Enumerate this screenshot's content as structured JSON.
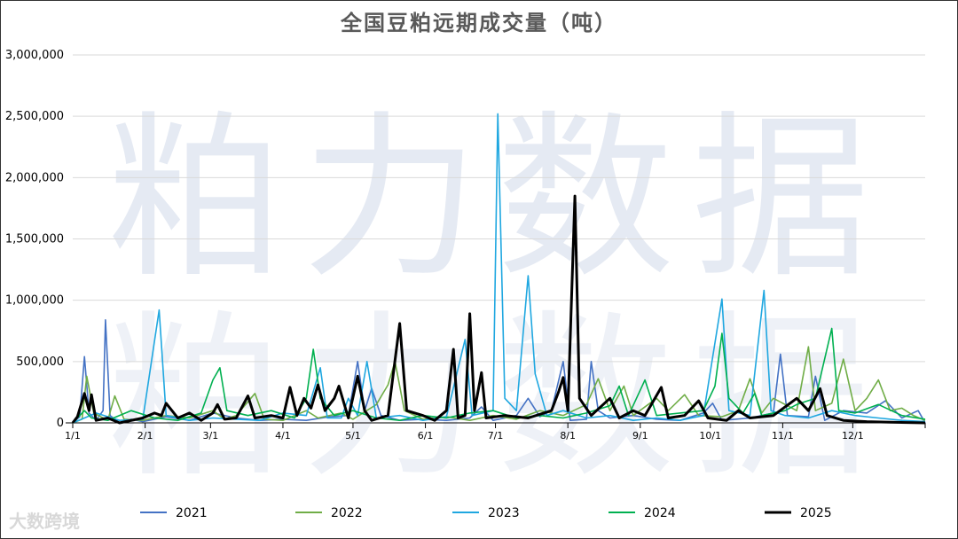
{
  "chart_data": {
    "type": "line",
    "title": "全国豆粕远期成交量（吨）",
    "watermark": "粕力数据",
    "logo_text": "大数跨境",
    "ylim": [
      0,
      3000000
    ],
    "yticks": [
      "0",
      "500,000",
      "1,000,000",
      "1,500,000",
      "2,000,000",
      "2,500,000",
      "3,000,000"
    ],
    "ytick_values": [
      0,
      500000,
      1000000,
      1500000,
      2000000,
      2500000,
      3000000
    ],
    "xticks": [
      "1/1",
      "2/1",
      "3/1",
      "4/1",
      "5/1",
      "6/1",
      "7/1",
      "8/1",
      "9/1",
      "10/1",
      "11/1",
      "12/1"
    ],
    "xtick_days": [
      0,
      31,
      59,
      90,
      120,
      151,
      181,
      212,
      243,
      273,
      304,
      334
    ],
    "xlim": [
      0,
      365
    ],
    "grid": true,
    "legend_position": "bottom",
    "series": [
      {
        "name": "2021",
        "color": "#4472c4",
        "points": [
          [
            0,
            0
          ],
          [
            3,
            50000
          ],
          [
            5,
            540000
          ],
          [
            7,
            80000
          ],
          [
            10,
            20000
          ],
          [
            13,
            100000
          ],
          [
            14,
            840000
          ],
          [
            16,
            60000
          ],
          [
            20,
            0
          ],
          [
            25,
            30000
          ],
          [
            30,
            10000
          ],
          [
            40,
            50000
          ],
          [
            50,
            20000
          ],
          [
            60,
            80000
          ],
          [
            70,
            40000
          ],
          [
            80,
            20000
          ],
          [
            90,
            30000
          ],
          [
            100,
            20000
          ],
          [
            110,
            50000
          ],
          [
            118,
            60000
          ],
          [
            122,
            500000
          ],
          [
            125,
            100000
          ],
          [
            128,
            280000
          ],
          [
            132,
            60000
          ],
          [
            140,
            20000
          ],
          [
            150,
            30000
          ],
          [
            160,
            20000
          ],
          [
            170,
            40000
          ],
          [
            175,
            130000
          ],
          [
            180,
            20000
          ],
          [
            190,
            60000
          ],
          [
            195,
            200000
          ],
          [
            200,
            50000
          ],
          [
            205,
            100000
          ],
          [
            210,
            500000
          ],
          [
            213,
            20000
          ],
          [
            220,
            30000
          ],
          [
            222,
            500000
          ],
          [
            225,
            100000
          ],
          [
            230,
            40000
          ],
          [
            240,
            60000
          ],
          [
            250,
            30000
          ],
          [
            260,
            20000
          ],
          [
            270,
            80000
          ],
          [
            274,
            160000
          ],
          [
            278,
            20000
          ],
          [
            290,
            40000
          ],
          [
            300,
            80000
          ],
          [
            303,
            560000
          ],
          [
            306,
            60000
          ],
          [
            315,
            50000
          ],
          [
            318,
            380000
          ],
          [
            322,
            20000
          ],
          [
            330,
            100000
          ],
          [
            340,
            80000
          ],
          [
            348,
            180000
          ],
          [
            355,
            40000
          ],
          [
            362,
            100000
          ],
          [
            365,
            0
          ]
        ]
      },
      {
        "name": "2022",
        "color": "#70ad47",
        "points": [
          [
            0,
            0
          ],
          [
            4,
            30000
          ],
          [
            6,
            380000
          ],
          [
            9,
            80000
          ],
          [
            15,
            20000
          ],
          [
            18,
            220000
          ],
          [
            22,
            30000
          ],
          [
            30,
            20000
          ],
          [
            40,
            60000
          ],
          [
            50,
            40000
          ],
          [
            60,
            100000
          ],
          [
            65,
            30000
          ],
          [
            70,
            60000
          ],
          [
            78,
            240000
          ],
          [
            82,
            30000
          ],
          [
            90,
            20000
          ],
          [
            100,
            100000
          ],
          [
            105,
            40000
          ],
          [
            115,
            80000
          ],
          [
            120,
            30000
          ],
          [
            130,
            150000
          ],
          [
            135,
            310000
          ],
          [
            138,
            500000
          ],
          [
            142,
            100000
          ],
          [
            150,
            30000
          ],
          [
            160,
            50000
          ],
          [
            170,
            20000
          ],
          [
            180,
            60000
          ],
          [
            190,
            30000
          ],
          [
            200,
            100000
          ],
          [
            210,
            60000
          ],
          [
            220,
            150000
          ],
          [
            225,
            360000
          ],
          [
            230,
            100000
          ],
          [
            236,
            300000
          ],
          [
            240,
            60000
          ],
          [
            250,
            200000
          ],
          [
            255,
            100000
          ],
          [
            262,
            230000
          ],
          [
            268,
            60000
          ],
          [
            278,
            50000
          ],
          [
            285,
            100000
          ],
          [
            290,
            360000
          ],
          [
            295,
            80000
          ],
          [
            300,
            200000
          ],
          [
            310,
            100000
          ],
          [
            315,
            620000
          ],
          [
            318,
            100000
          ],
          [
            325,
            160000
          ],
          [
            330,
            520000
          ],
          [
            335,
            100000
          ],
          [
            340,
            200000
          ],
          [
            345,
            350000
          ],
          [
            350,
            100000
          ],
          [
            355,
            120000
          ],
          [
            360,
            60000
          ],
          [
            365,
            20000
          ]
        ]
      },
      {
        "name": "2023",
        "color": "#1fa7e0",
        "points": [
          [
            0,
            0
          ],
          [
            5,
            40000
          ],
          [
            10,
            80000
          ],
          [
            20,
            20000
          ],
          [
            30,
            30000
          ],
          [
            37,
            920000
          ],
          [
            40,
            60000
          ],
          [
            50,
            20000
          ],
          [
            60,
            40000
          ],
          [
            70,
            30000
          ],
          [
            80,
            20000
          ],
          [
            90,
            80000
          ],
          [
            100,
            60000
          ],
          [
            106,
            450000
          ],
          [
            109,
            40000
          ],
          [
            115,
            40000
          ],
          [
            118,
            200000
          ],
          [
            122,
            60000
          ],
          [
            126,
            500000
          ],
          [
            130,
            40000
          ],
          [
            140,
            60000
          ],
          [
            150,
            20000
          ],
          [
            160,
            50000
          ],
          [
            168,
            680000
          ],
          [
            171,
            60000
          ],
          [
            180,
            100000
          ],
          [
            182,
            2520000
          ],
          [
            185,
            200000
          ],
          [
            190,
            100000
          ],
          [
            195,
            1200000
          ],
          [
            198,
            400000
          ],
          [
            203,
            60000
          ],
          [
            210,
            100000
          ],
          [
            220,
            40000
          ],
          [
            230,
            60000
          ],
          [
            240,
            20000
          ],
          [
            250,
            40000
          ],
          [
            260,
            20000
          ],
          [
            270,
            60000
          ],
          [
            278,
            1010000
          ],
          [
            281,
            100000
          ],
          [
            290,
            60000
          ],
          [
            296,
            1080000
          ],
          [
            299,
            100000
          ],
          [
            305,
            60000
          ],
          [
            315,
            40000
          ],
          [
            325,
            100000
          ],
          [
            335,
            60000
          ],
          [
            345,
            40000
          ],
          [
            355,
            20000
          ],
          [
            365,
            10000
          ]
        ]
      },
      {
        "name": "2024",
        "color": "#00b050",
        "points": [
          [
            0,
            0
          ],
          [
            5,
            100000
          ],
          [
            8,
            40000
          ],
          [
            15,
            20000
          ],
          [
            25,
            100000
          ],
          [
            35,
            40000
          ],
          [
            45,
            20000
          ],
          [
            55,
            80000
          ],
          [
            60,
            350000
          ],
          [
            63,
            450000
          ],
          [
            66,
            100000
          ],
          [
            75,
            60000
          ],
          [
            85,
            100000
          ],
          [
            95,
            40000
          ],
          [
            100,
            200000
          ],
          [
            103,
            600000
          ],
          [
            106,
            200000
          ],
          [
            112,
            60000
          ],
          [
            120,
            100000
          ],
          [
            130,
            40000
          ],
          [
            140,
            20000
          ],
          [
            150,
            60000
          ],
          [
            160,
            40000
          ],
          [
            170,
            80000
          ],
          [
            180,
            100000
          ],
          [
            190,
            40000
          ],
          [
            200,
            60000
          ],
          [
            210,
            40000
          ],
          [
            220,
            80000
          ],
          [
            230,
            140000
          ],
          [
            234,
            300000
          ],
          [
            238,
            60000
          ],
          [
            245,
            350000
          ],
          [
            250,
            60000
          ],
          [
            260,
            80000
          ],
          [
            270,
            100000
          ],
          [
            275,
            300000
          ],
          [
            278,
            730000
          ],
          [
            281,
            200000
          ],
          [
            287,
            80000
          ],
          [
            292,
            240000
          ],
          [
            295,
            60000
          ],
          [
            305,
            100000
          ],
          [
            310,
            150000
          ],
          [
            318,
            200000
          ],
          [
            325,
            770000
          ],
          [
            328,
            100000
          ],
          [
            335,
            80000
          ],
          [
            345,
            150000
          ],
          [
            355,
            60000
          ],
          [
            365,
            30000
          ]
        ]
      },
      {
        "name": "2025",
        "color": "#000000",
        "points": [
          [
            0,
            0
          ],
          [
            2,
            50000
          ],
          [
            5,
            240000
          ],
          [
            7,
            100000
          ],
          [
            8,
            230000
          ],
          [
            10,
            20000
          ],
          [
            15,
            40000
          ],
          [
            20,
            0
          ],
          [
            30,
            40000
          ],
          [
            35,
            80000
          ],
          [
            38,
            60000
          ],
          [
            40,
            160000
          ],
          [
            45,
            40000
          ],
          [
            50,
            80000
          ],
          [
            55,
            20000
          ],
          [
            60,
            80000
          ],
          [
            62,
            150000
          ],
          [
            65,
            30000
          ],
          [
            70,
            40000
          ],
          [
            75,
            220000
          ],
          [
            78,
            40000
          ],
          [
            85,
            60000
          ],
          [
            90,
            40000
          ],
          [
            93,
            290000
          ],
          [
            96,
            60000
          ],
          [
            99,
            200000
          ],
          [
            102,
            120000
          ],
          [
            105,
            310000
          ],
          [
            108,
            100000
          ],
          [
            112,
            200000
          ],
          [
            114,
            300000
          ],
          [
            118,
            40000
          ],
          [
            122,
            380000
          ],
          [
            125,
            100000
          ],
          [
            128,
            20000
          ],
          [
            135,
            60000
          ],
          [
            140,
            810000
          ],
          [
            143,
            100000
          ],
          [
            150,
            60000
          ],
          [
            155,
            20000
          ],
          [
            160,
            100000
          ],
          [
            163,
            600000
          ],
          [
            165,
            40000
          ],
          [
            168,
            60000
          ],
          [
            170,
            890000
          ],
          [
            172,
            100000
          ],
          [
            175,
            410000
          ],
          [
            177,
            40000
          ],
          [
            185,
            60000
          ],
          [
            195,
            40000
          ],
          [
            205,
            100000
          ],
          [
            208,
            250000
          ],
          [
            210,
            370000
          ],
          [
            212,
            100000
          ],
          [
            215,
            1850000
          ],
          [
            217,
            200000
          ],
          [
            222,
            60000
          ],
          [
            230,
            200000
          ],
          [
            234,
            40000
          ],
          [
            240,
            100000
          ],
          [
            245,
            60000
          ],
          [
            252,
            290000
          ],
          [
            255,
            40000
          ],
          [
            262,
            60000
          ],
          [
            268,
            180000
          ],
          [
            272,
            40000
          ],
          [
            280,
            20000
          ],
          [
            285,
            100000
          ],
          [
            290,
            40000
          ],
          [
            300,
            60000
          ],
          [
            310,
            200000
          ],
          [
            315,
            100000
          ],
          [
            320,
            280000
          ],
          [
            323,
            60000
          ],
          [
            330,
            20000
          ],
          [
            340,
            10000
          ],
          [
            350,
            5000
          ],
          [
            365,
            0
          ]
        ]
      }
    ]
  }
}
